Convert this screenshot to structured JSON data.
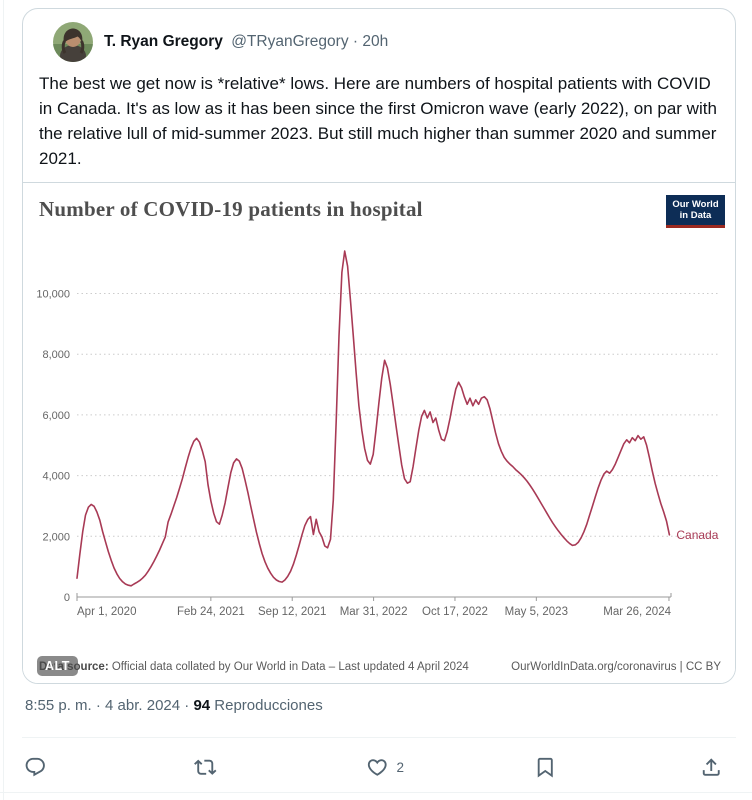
{
  "tweet": {
    "author": {
      "name": "T. Ryan Gregory",
      "handle_time": "@TRyanGregory · 20h"
    },
    "text": "The best we get now is *relative* lows. Here are numbers of hospital patients with COVID in Canada. It's as low as it has been since the first Omicron wave (early 2022), on par with the relative lull of mid-summer 2023. But still much higher than summer 2020 and summer 2021.",
    "meta_left": "8:55 p. m. · 4 abr. 2024 · ",
    "views_count": "94",
    "views_label": " Reproducciones",
    "actions": {
      "like_count": "2"
    },
    "alt_badge": "ALT"
  },
  "chart": {
    "title": "Number of COVID-19 patients in hospital",
    "logo_line1": "Our World",
    "logo_line2": "in Data",
    "footer_left_bold": "Data source:",
    "footer_left_rest": " Official data collated by Our World in Data – Last updated 4 April 2024",
    "footer_right": "OurWorldInData.org/coronavirus | CC BY",
    "colors": {
      "line": "#a83a55",
      "axis": "#9a9a9a",
      "grid": "#cccccc",
      "tick_text": "#666666",
      "logo_navy": "#0d2d56",
      "logo_red": "#9c2a20"
    }
  },
  "chart_data": {
    "type": "line",
    "title": "Number of COVID-19 patients in hospital",
    "xlabel": "",
    "ylabel": "",
    "grid": "dotted-horizontal",
    "legend": "inline-end-label",
    "x_domain_days": [
      0,
      1460
    ],
    "x_ticks": [
      {
        "day": 0,
        "label": "Apr 1, 2020"
      },
      {
        "day": 329,
        "label": "Feb 24, 2021"
      },
      {
        "day": 529,
        "label": "Sep 12, 2021"
      },
      {
        "day": 729,
        "label": "Mar 31, 2022"
      },
      {
        "day": 929,
        "label": "Oct 17, 2022"
      },
      {
        "day": 1129,
        "label": "May 5, 2023"
      },
      {
        "day": 1455,
        "label": "Mar 26, 2024"
      }
    ],
    "y_ticks": [
      0,
      2000,
      4000,
      6000,
      8000,
      10000
    ],
    "ylim": [
      0,
      11600
    ],
    "series": [
      {
        "name": "Canada",
        "start_day": 0,
        "step_days": 7,
        "values": [
          620,
          1400,
          2150,
          2700,
          2960,
          3050,
          2990,
          2800,
          2530,
          2160,
          1820,
          1500,
          1210,
          960,
          760,
          610,
          500,
          430,
          390,
          370,
          430,
          480,
          540,
          620,
          720,
          850,
          1000,
          1170,
          1350,
          1550,
          1760,
          1980,
          2470,
          2730,
          3000,
          3280,
          3580,
          3900,
          4250,
          4600,
          4900,
          5130,
          5230,
          5100,
          4820,
          4460,
          3700,
          3160,
          2760,
          2480,
          2400,
          2700,
          3100,
          3600,
          4100,
          4420,
          4550,
          4480,
          4230,
          3860,
          3440,
          3000,
          2560,
          2140,
          1760,
          1430,
          1160,
          950,
          780,
          650,
          560,
          510,
          490,
          560,
          680,
          850,
          1080,
          1380,
          1700,
          2050,
          2350,
          2550,
          2650,
          2060,
          2560,
          2150,
          1980,
          1680,
          1620,
          1900,
          3200,
          5800,
          8600,
          10700,
          11400,
          10900,
          9800,
          8600,
          7400,
          6300,
          5500,
          4900,
          4500,
          4380,
          4700,
          5500,
          6400,
          7200,
          7800,
          7550,
          7000,
          6350,
          5650,
          5000,
          4350,
          3900,
          3750,
          3800,
          4300,
          4900,
          5500,
          5950,
          6150,
          5900,
          6100,
          5750,
          5900,
          5500,
          5200,
          5150,
          5450,
          5900,
          6400,
          6850,
          7080,
          6900,
          6600,
          6350,
          6550,
          6300,
          6500,
          6350,
          6550,
          6600,
          6500,
          6200,
          5800,
          5400,
          5050,
          4800,
          4600,
          4480,
          4380,
          4300,
          4200,
          4120,
          4030,
          3930,
          3820,
          3690,
          3550,
          3400,
          3240,
          3080,
          2920,
          2760,
          2600,
          2450,
          2310,
          2180,
          2060,
          1950,
          1850,
          1760,
          1700,
          1720,
          1800,
          1950,
          2150,
          2400,
          2700,
          3000,
          3300,
          3600,
          3850,
          4050,
          4150,
          4080,
          4200,
          4380,
          4600,
          4830,
          5050,
          5180,
          5080,
          5250,
          5150,
          5320,
          5200,
          5280,
          5000,
          4600,
          4150,
          3750,
          3400,
          3080,
          2800,
          2500,
          2050
        ]
      }
    ]
  }
}
